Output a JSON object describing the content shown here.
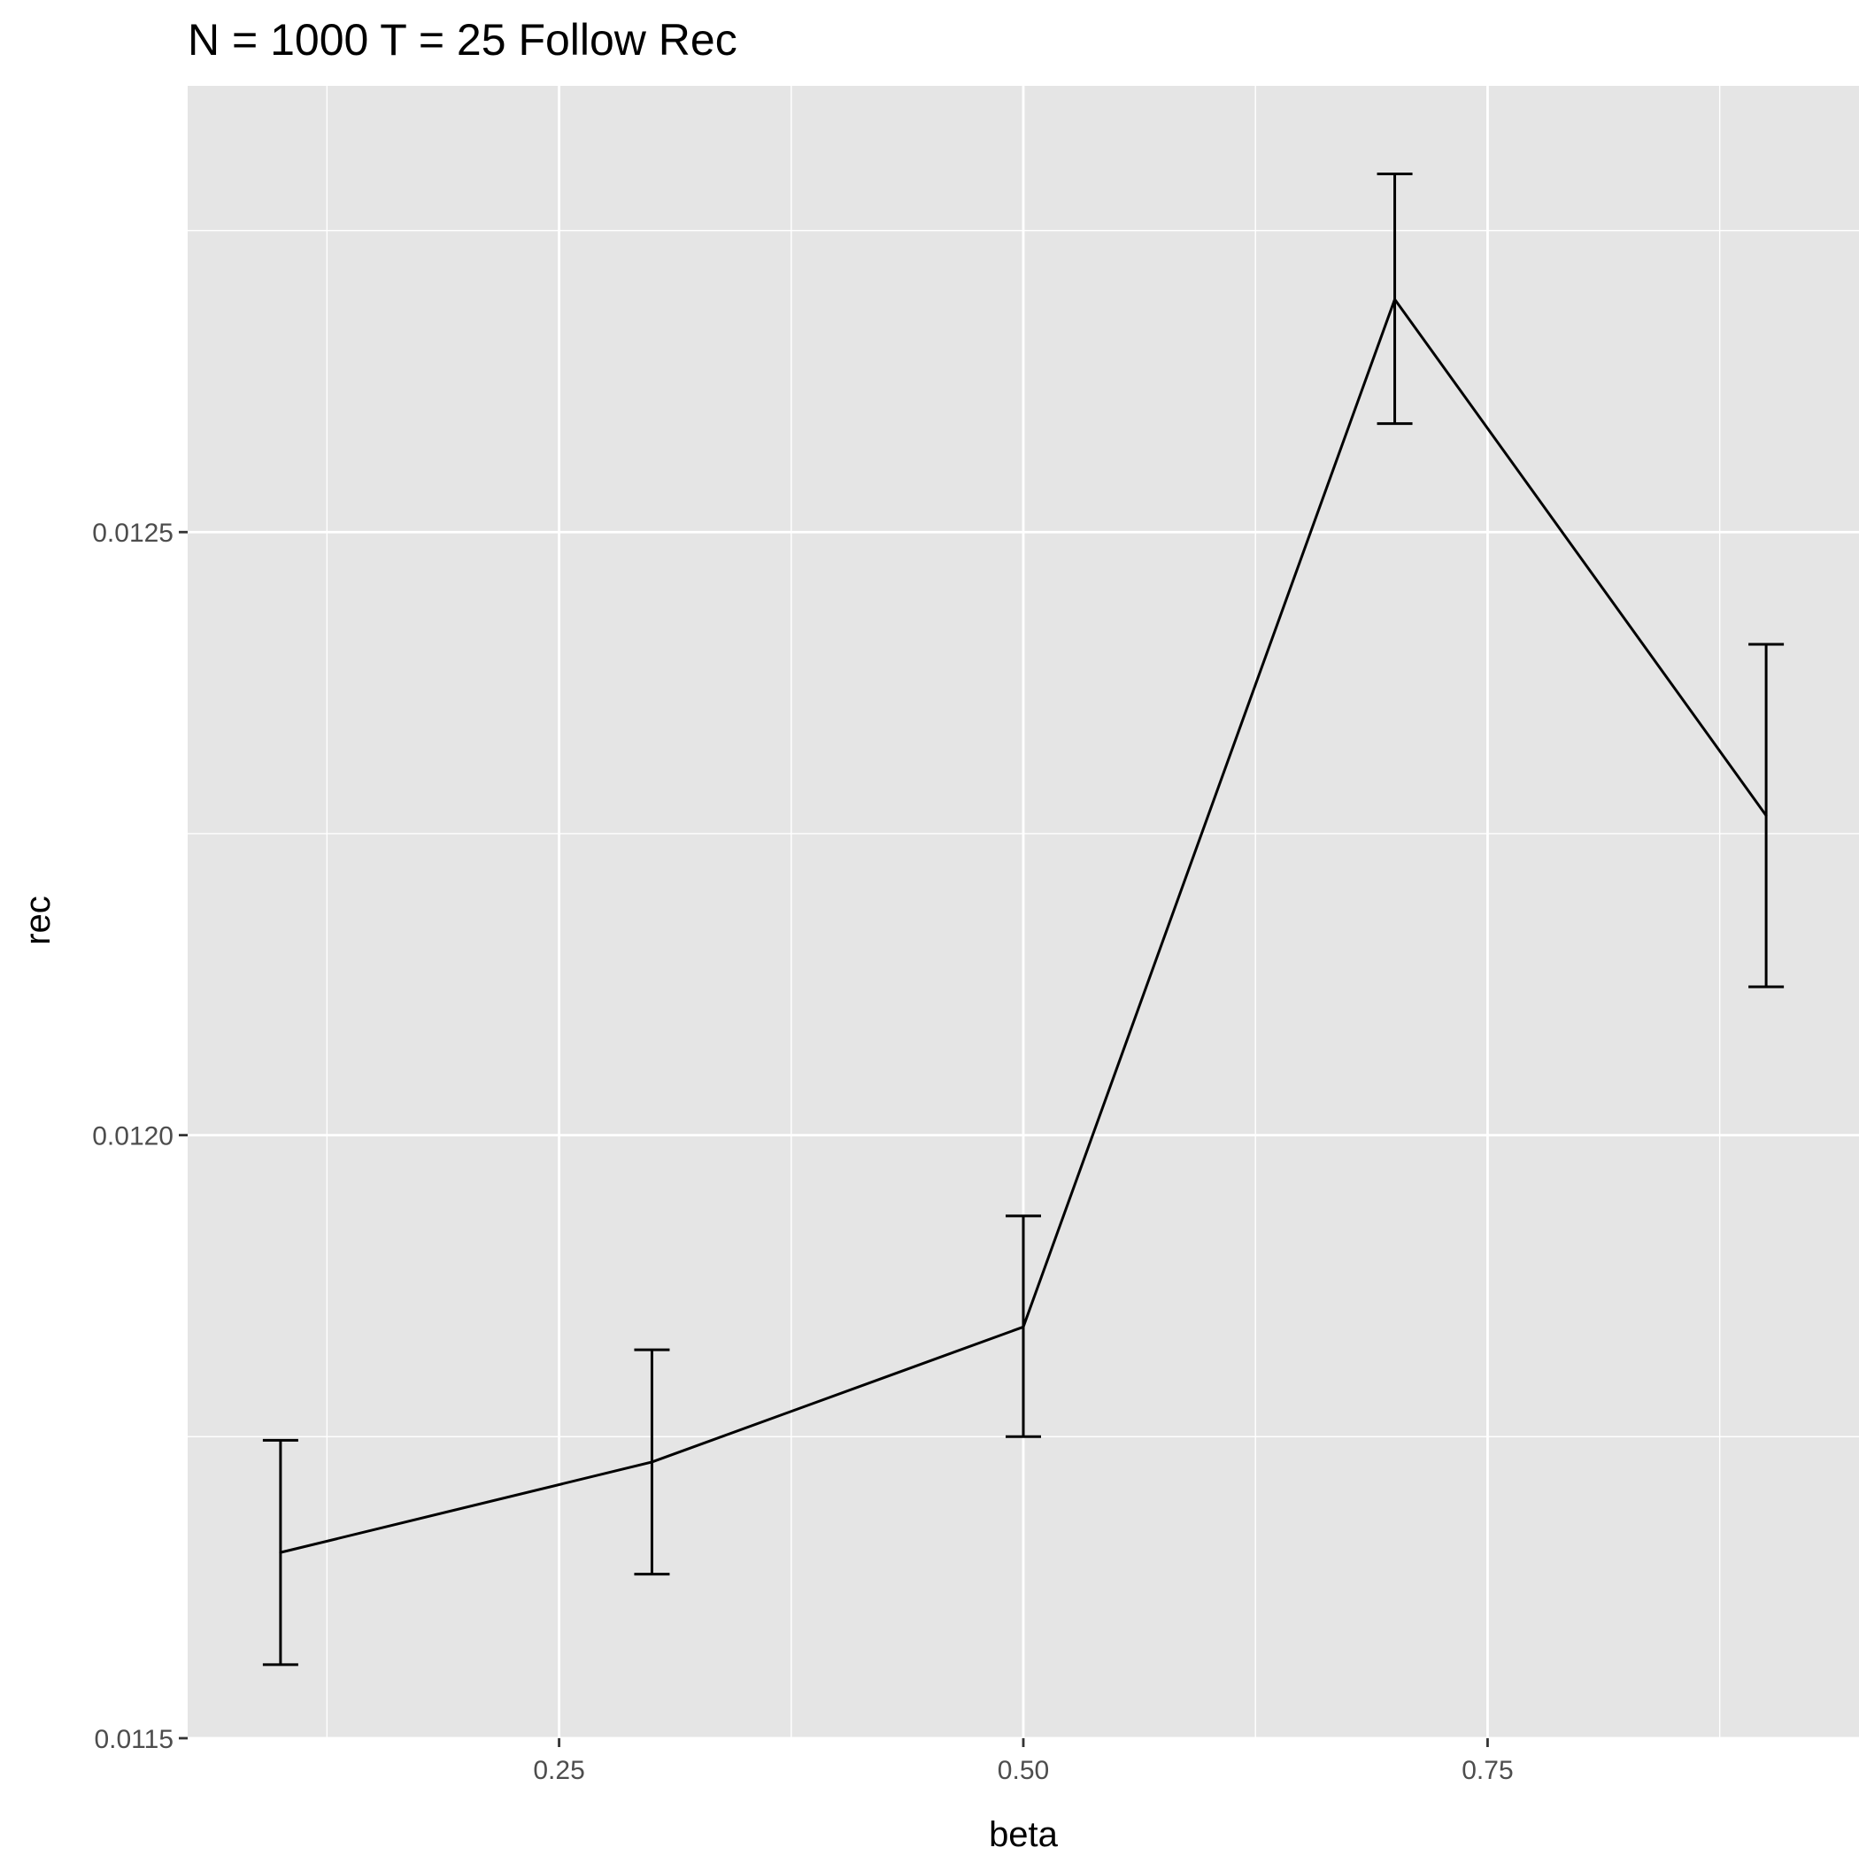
{
  "chart_data": {
    "type": "line",
    "title": "N = 1000 T = 25 Follow Rec",
    "xlabel": "beta",
    "ylabel": "rec",
    "xlim": [
      0.05,
      0.95
    ],
    "ylim": [
      0.0115,
      0.01287
    ],
    "x_ticks": [
      0.25,
      0.5,
      0.75
    ],
    "x_tick_labels": [
      "0.25",
      "0.50",
      "0.75"
    ],
    "x_minor_ticks": [
      0.125,
      0.375,
      0.625,
      0.875
    ],
    "y_ticks": [
      0.0115,
      0.012,
      0.0125
    ],
    "y_tick_labels": [
      "0.0115",
      "0.0120",
      "0.0125"
    ],
    "y_minor_ticks": [
      0.01175,
      0.01225,
      0.01275
    ],
    "grid": true,
    "panel_background": "#e5e5e5",
    "gridline_color": "#ffffff",
    "line_color": "#000000",
    "series": [
      {
        "x": [
          0.1,
          0.3,
          0.5,
          0.7,
          0.9
        ],
        "y": [
          0.011654,
          0.011729,
          0.011841,
          0.012693,
          0.012265
        ],
        "ymin": [
          0.011561,
          0.011636,
          0.01175,
          0.01259,
          0.012123
        ],
        "ymax": [
          0.011747,
          0.011822,
          0.011933,
          0.012797,
          0.012407
        ]
      }
    ]
  }
}
